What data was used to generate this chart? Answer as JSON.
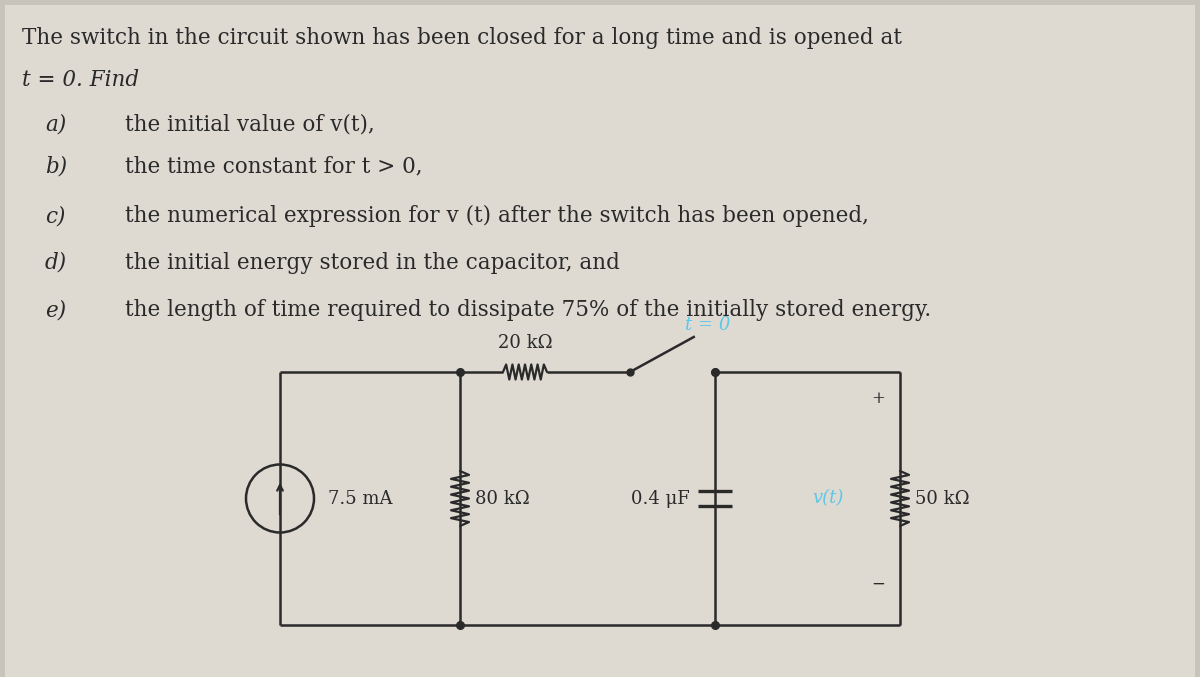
{
  "bg_color": "#c8c4bc",
  "text_bg": "#e8e4de",
  "title_line1": "The switch in the circuit shown has been closed for a long time and is opened at",
  "title_line2": "t = 0. Find",
  "items": [
    [
      "a)",
      "the initial value of v(t),"
    ],
    [
      "b)",
      "the time constant for t > 0,"
    ],
    [
      "c)",
      "the numerical expression for v (t) after the switch has been opened,"
    ],
    [
      "d)",
      "the initial energy stored in the capacitor, and"
    ],
    [
      "e)",
      "the length of time required to dissipate 75% of the initially stored energy."
    ]
  ],
  "circuit": {
    "current_source": "7.5 mA",
    "r1_label": "80 kΩ",
    "r2_label": "20 kΩ",
    "r3_label": "50 kΩ",
    "cap_label": "0.4 μF",
    "vt_label": "v(t)",
    "switch_label": "t = 0",
    "plus_sign": "+",
    "minus_sign": "−"
  },
  "font_size_body": 15.5,
  "font_size_circuit": 13,
  "text_color": "#2a2a2a",
  "circuit_color": "#2a2a2a",
  "highlight_color": "#5bc8e8"
}
